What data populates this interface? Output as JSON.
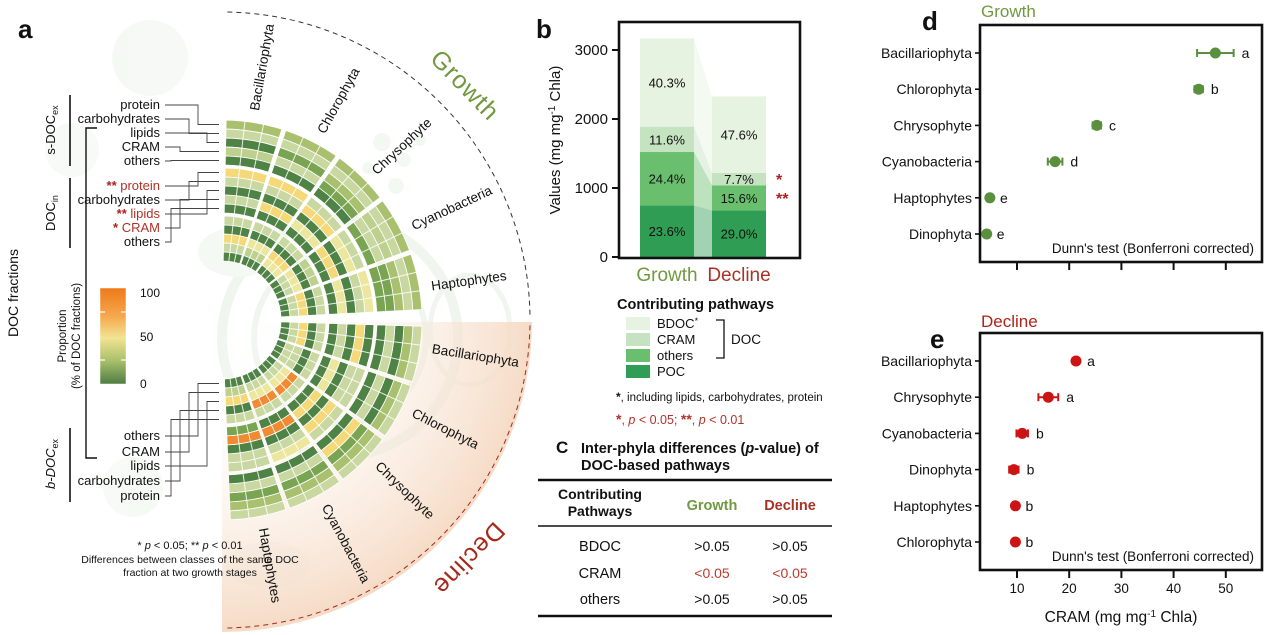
{
  "panel_labels": {
    "a": "a",
    "b": "b",
    "c": "C",
    "d": "d",
    "e": "e"
  },
  "colors": {
    "growth_green": "#71993f",
    "decline_red": "#a93226",
    "accent_red": "#b01f1f",
    "dot_green": "#5a8f3e",
    "dot_red": "#cc1414",
    "poc": "#2f9e54",
    "others": "#6abf6e",
    "cram": "#c6e3c1",
    "bdoc": "#e6f3e1"
  },
  "panel_a": {
    "stage_top": "Growth",
    "stage_bottom": "Decline",
    "phyla_top": [
      "Bacillariophyta",
      "Chlorophyta",
      "Chrysophyte",
      "Cyanobacteria",
      "Haptophytes"
    ],
    "phyla_bottom": [
      "Bacillariophyta",
      "Chlorophyta",
      "Chrysophyte",
      "Cyanobacteria",
      "Haptophytes"
    ],
    "axis_label": "DOC fractions",
    "fraction_groups": [
      {
        "name": "s-DOC",
        "sub": "ex",
        "items": [
          {
            "label": "protein",
            "stars": "",
            "red": false
          },
          {
            "label": "carbohydrates",
            "stars": "",
            "red": false
          },
          {
            "label": "lipids",
            "stars": "",
            "red": false
          },
          {
            "label": "CRAM",
            "stars": "",
            "red": false
          },
          {
            "label": "others",
            "stars": "",
            "red": false
          }
        ]
      },
      {
        "name": "DOC",
        "sub": "in",
        "items": [
          {
            "label": "protein",
            "stars": "**",
            "red": true
          },
          {
            "label": "carbohydrates",
            "stars": "",
            "red": false
          },
          {
            "label": "lipids",
            "stars": "**",
            "red": true
          },
          {
            "label": "CRAM",
            "stars": "*",
            "red": true
          },
          {
            "label": "others",
            "stars": "",
            "red": false
          }
        ]
      },
      {
        "name": "b-DOC",
        "sub": "ex",
        "items": [
          {
            "label": "others",
            "stars": "",
            "red": false
          },
          {
            "label": "CRAM",
            "stars": "",
            "red": false
          },
          {
            "label": "lipids",
            "stars": "",
            "red": false
          },
          {
            "label": "carbohydrates",
            "stars": "",
            "red": false
          },
          {
            "label": "protein",
            "stars": "",
            "red": false
          }
        ]
      }
    ],
    "colorbar": {
      "title_line1": "Proportion",
      "title_line2": "(% of DOC fractions)",
      "ticks": [
        "100",
        "50",
        "0"
      ],
      "gradient": [
        "#ee7918",
        "#f6a94f",
        "#f2e493",
        "#a8bf6a",
        "#4e7d43"
      ]
    },
    "footnote": {
      "line1_segments": [
        {
          "t": "* "
        },
        {
          "t": "p",
          "i": 1
        },
        {
          "t": " < 0.05;  ** "
        },
        {
          "t": "p",
          "i": 1
        },
        {
          "t": " < 0.01"
        }
      ],
      "line2": "Differences between classes of the same DOC",
      "line3": "fraction at two growth stages"
    },
    "heatmap_palette": {
      "dg": "#4f8245",
      "mg": "#79a452",
      "og": "#a9c06e",
      "pg": "#c9d8a0",
      "pl": "#bdd08e",
      "py": "#ece79d",
      "yl": "#f5d878",
      "or": "#ef8b31"
    },
    "growth_rings": [
      [
        "og",
        "og",
        "og",
        "og",
        "og"
      ],
      [
        "pg",
        "pg",
        "pg",
        "pg",
        "pg"
      ],
      [
        "dg",
        "mg",
        "og",
        "pl",
        "og"
      ],
      [
        "pl",
        "pg",
        "mg",
        "pg",
        "mg"
      ],
      [
        "dg",
        "dg",
        "dg",
        "mg",
        "mg"
      ],
      [
        "yl",
        "yl",
        "pg",
        "pg",
        "py"
      ],
      [
        "pg",
        "pg",
        "yl",
        "py",
        "pg"
      ],
      [
        "dg",
        "dg",
        "dg",
        "dg",
        "dg"
      ],
      [
        "pg",
        "yl",
        "py",
        "yl",
        "py"
      ],
      [
        "dg",
        "dg",
        "dg",
        "dg",
        "dg"
      ],
      [
        "pg",
        "pg",
        "pg",
        "pl",
        "pg"
      ],
      [
        "dg",
        "dg",
        "dg",
        "dg",
        "dg"
      ],
      [
        "yl",
        "py",
        "yl",
        "py",
        "yl"
      ],
      [
        "pg",
        "pl",
        "py",
        "pg",
        "pg"
      ],
      [
        "dg",
        "dg",
        "dg",
        "dg",
        "dg"
      ]
    ],
    "decline_rings": [
      [
        "pg",
        "pg",
        "pg",
        "pg",
        "pg"
      ],
      [
        "og",
        "og",
        "og",
        "og",
        "og"
      ],
      [
        "dg",
        "dg",
        "mg",
        "mg",
        "mg"
      ],
      [
        "pg",
        "pg",
        "yl",
        "pg",
        "pg"
      ],
      [
        "dg",
        "dg",
        "dg",
        "dg",
        "dg"
      ],
      [
        "dg",
        "pg",
        "pg",
        "py",
        "pg"
      ],
      [
        "yl",
        "pg",
        "yl",
        "pg",
        "pg"
      ],
      [
        "dg",
        "dg",
        "dg",
        "dg",
        "dg"
      ],
      [
        "pg",
        "py",
        "yl",
        "or",
        "or"
      ],
      [
        "dg",
        "dg",
        "dg",
        "dg",
        "mg"
      ],
      [
        "pg",
        "pg",
        "pg",
        "pg",
        "pg"
      ],
      [
        "dg",
        "dg",
        "or",
        "or",
        "dg"
      ],
      [
        "yl",
        "pg",
        "py",
        "py",
        "yl"
      ],
      [
        "pg",
        "pg",
        "pg",
        "pg",
        "pl"
      ],
      [
        "dg",
        "dg",
        "dg",
        "dg",
        "dg"
      ]
    ]
  },
  "chart_data": [
    {
      "id": "b",
      "type": "bar",
      "stacked": true,
      "ylabel": {
        "pre": "Values (mg mg",
        "sup": "-1",
        "post": " Chla)"
      },
      "ylim": [
        0,
        3400
      ],
      "yticks": [
        0,
        1000,
        2000,
        3000
      ],
      "categories": [
        "Growth",
        "Decline"
      ],
      "totals": [
        3170,
        2330
      ],
      "series": [
        {
          "name": "POC",
          "color_key": "poc",
          "pct": [
            23.6,
            29.0
          ],
          "labels": [
            "23.6%",
            "29.0%"
          ]
        },
        {
          "name": "others",
          "color_key": "others",
          "pct": [
            24.4,
            15.6
          ],
          "labels": [
            "24.4%",
            "15.6%"
          ]
        },
        {
          "name": "CRAM",
          "color_key": "cram",
          "pct": [
            11.6,
            7.7
          ],
          "labels": [
            "11.6%",
            "7.7%"
          ]
        },
        {
          "name": "BDOC",
          "color_key": "bdoc",
          "star": true,
          "pct": [
            40.3,
            47.6
          ],
          "labels": [
            "40.3%",
            "47.6%"
          ]
        }
      ],
      "sig_marks": [
        {
          "mark": "*",
          "segment": "CRAM"
        },
        {
          "mark": "**",
          "segment": "others"
        }
      ],
      "legend": {
        "title": "Contributing pathways",
        "bracket_label": "DOC",
        "items": [
          {
            "label": "BDOC",
            "star": true
          },
          {
            "label": "CRAM"
          },
          {
            "label": "others"
          },
          {
            "label": "POC"
          }
        ]
      },
      "footnote1": {
        "star": "*",
        "text": ", including lipids, carbohydrates, protein"
      },
      "footnote2_segments": [
        {
          "t": "*",
          "b": 1
        },
        {
          "t": ", "
        },
        {
          "t": "p",
          "i": 1
        },
        {
          "t": " < 0.05;  "
        },
        {
          "t": "**",
          "b": 1
        },
        {
          "t": ", "
        },
        {
          "t": "p",
          "i": 1
        },
        {
          "t": " < 0.01"
        }
      ]
    },
    {
      "id": "d",
      "type": "scatter",
      "title": "Growth",
      "categories": [
        "Bacillariophyta",
        "Chlorophyta",
        "Chrysophyte",
        "Cyanobacteria",
        "Haptophytes",
        "Dinophyta"
      ],
      "values": [
        48.0,
        44.8,
        25.3,
        17.3,
        4.8,
        4.2
      ],
      "errors": [
        3.5,
        0.8,
        0.8,
        1.4,
        0.4,
        0.4
      ],
      "letters": [
        "a",
        "b",
        "c",
        "d",
        "e",
        "e"
      ],
      "xlim": [
        2.8,
        56.5
      ],
      "xticks": [
        10,
        20,
        30,
        40,
        50
      ],
      "xtick_labels_visible": false,
      "note": "Dunn's test (Bonferroni corrected)"
    },
    {
      "id": "e",
      "type": "scatter",
      "title": "Decline",
      "categories": [
        "Bacillariophyta",
        "Chrysophyte",
        "Cyanobacteria",
        "Dinophyta",
        "Haptophytes",
        "Chlorophyta"
      ],
      "values": [
        21.3,
        16.0,
        11.0,
        9.4,
        9.7,
        9.7
      ],
      "errors": [
        0.6,
        1.9,
        1.1,
        0.9,
        0.4,
        0.4
      ],
      "letters": [
        "a",
        "a",
        "b",
        "b",
        "b",
        "b"
      ],
      "xlim": [
        2.8,
        56.5
      ],
      "xticks": [
        10,
        20,
        30,
        40,
        50
      ],
      "xtick_labels_visible": true,
      "xlabel": {
        "pre": "CRAM (mg mg",
        "sup": "-1",
        "post": " Chla)"
      },
      "note": "Dunn's test (Bonferroni corrected)"
    }
  ],
  "panel_c": {
    "title": {
      "pre": "Inter-phyla differences (",
      "italic": "p",
      "post": "-value) of",
      "line2": "DOC-based pathways"
    },
    "table": {
      "header": {
        "col1_line1": "Contributing",
        "col1_line2": "Pathways",
        "col2": "Growth",
        "col3": "Decline"
      },
      "rows": [
        {
          "pathway": "BDOC",
          "growth": ">0.05",
          "decline": ">0.05",
          "significant": false
        },
        {
          "pathway": "CRAM",
          "growth": "<0.05",
          "decline": "<0.05",
          "significant": true
        },
        {
          "pathway": "others",
          "growth": ">0.05",
          "decline": ">0.05",
          "significant": false
        }
      ]
    }
  }
}
